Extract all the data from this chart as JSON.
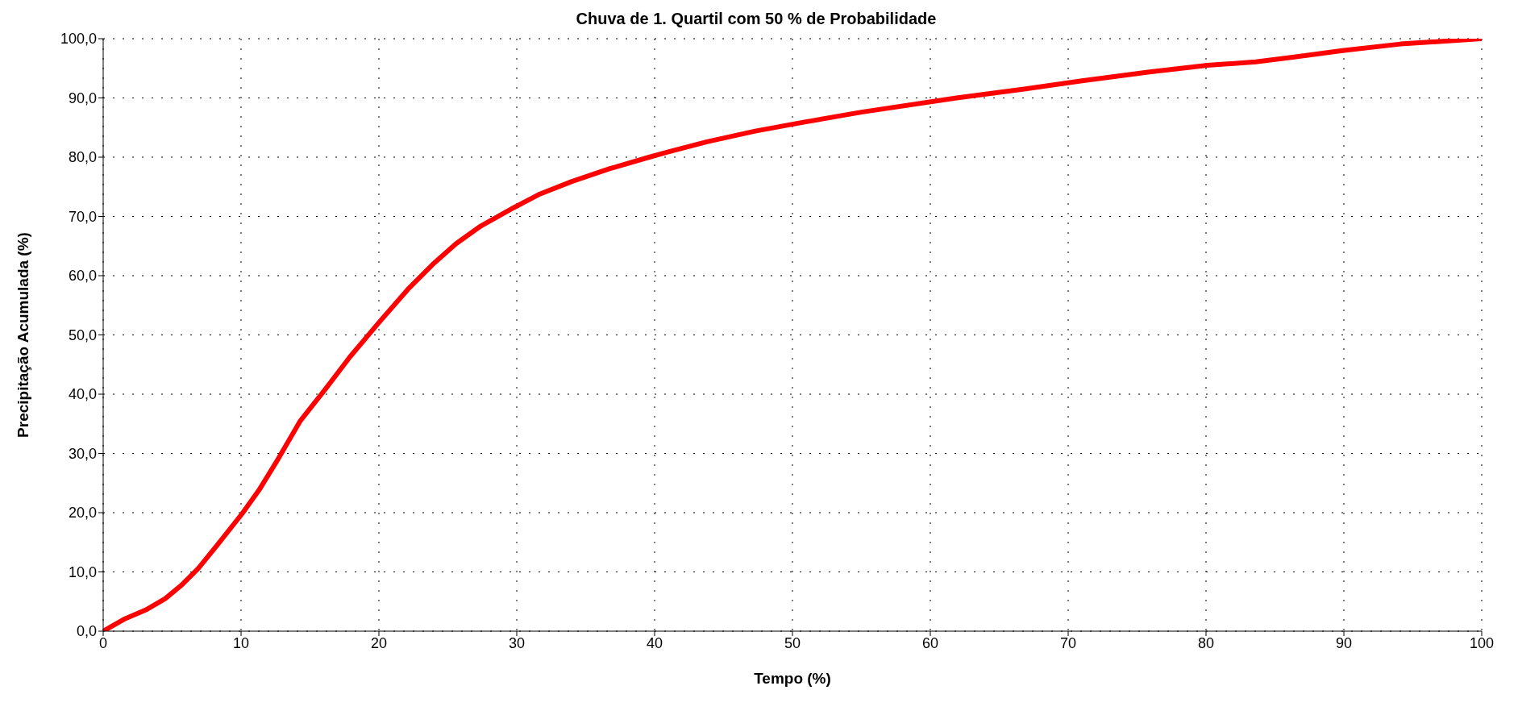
{
  "chart_data": {
    "type": "line",
    "title": "Chuva de 1. Quartil com 50 % de Probabilidade",
    "xlabel": "Tempo (%)",
    "ylabel": "Precipitação Acumulada (%)",
    "x": [
      0,
      1.5,
      3.1,
      4.5,
      5.7,
      6.9,
      8.3,
      10.1,
      11.3,
      12.7,
      14.3,
      16.1,
      17.9,
      20.0,
      22.1,
      23.9,
      25.6,
      27.4,
      29.8,
      31.6,
      34.0,
      36.8,
      39.6,
      41.0,
      43.8,
      47.3,
      50.8,
      55.0,
      61.9,
      66.8,
      71.0,
      75.9,
      80.1,
      83.6,
      86.4,
      89.9,
      94.1,
      100
    ],
    "series": [
      {
        "color": "#ff0000",
        "values": [
          0,
          2.0,
          3.6,
          5.5,
          7.8,
          10.6,
          14.6,
          19.9,
          23.8,
          29.1,
          35.5,
          40.8,
          46.3,
          52.1,
          57.7,
          61.9,
          65.4,
          68.4,
          71.5,
          73.7,
          75.9,
          78.1,
          80.0,
          80.9,
          82.6,
          84.4,
          85.9,
          87.6,
          90.0,
          91.5,
          92.9,
          94.4,
          95.5,
          96.1,
          96.9,
          98.0,
          99.1,
          100
        ]
      }
    ],
    "xlim": [
      0,
      100
    ],
    "xticks": [
      0,
      10,
      20,
      30,
      40,
      50,
      60,
      70,
      80,
      90,
      100
    ],
    "ylim": [
      0,
      100
    ],
    "yticks": [
      {
        "value": 0,
        "label": "0,0"
      },
      {
        "value": 10,
        "label": "10,0"
      },
      {
        "value": 20,
        "label": "20,0"
      },
      {
        "value": 30,
        "label": "30,0"
      },
      {
        "value": 40,
        "label": "40,0"
      },
      {
        "value": 50,
        "label": "50,0"
      },
      {
        "value": 60,
        "label": "60,0"
      },
      {
        "value": 70,
        "label": "70,0"
      },
      {
        "value": 80,
        "label": "80,0"
      },
      {
        "value": 90,
        "label": "90,0"
      },
      {
        "value": 100,
        "label": "100,0"
      }
    ],
    "grid": true,
    "marker": "none",
    "line_style": "solid"
  }
}
